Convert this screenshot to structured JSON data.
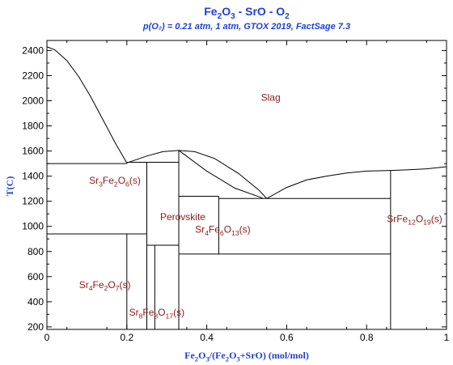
{
  "chart_data": {
    "type": "phase-diagram",
    "title": {
      "parts": [
        "Fe",
        "2",
        "O",
        "3",
        " - SrO - O",
        "2"
      ]
    },
    "subtitle": "p(O₂) = 0.21 atm, 1 atm, GTOX 2019, FactSage 7.3",
    "xlabel": {
      "parts": [
        "Fe",
        "2",
        "O",
        "3",
        "/(Fe",
        "2",
        "O",
        "3",
        "+SrO) (mol/mol)"
      ]
    },
    "ylabel": "T(C)",
    "xlim": [
      0,
      1
    ],
    "ylim": [
      180,
      2480
    ],
    "x_ticks": [
      0,
      0.2,
      0.4,
      0.6,
      0.8,
      1
    ],
    "x_tick_labels": [
      "0",
      "0.2",
      "0.4",
      "0.6",
      "0.8",
      "1"
    ],
    "y_ticks": [
      200,
      400,
      600,
      800,
      1000,
      1200,
      1400,
      1600,
      1800,
      2000,
      2200,
      2400
    ],
    "y_tick_labels": [
      "200",
      "400",
      "600",
      "800",
      "1000",
      "1200",
      "1400",
      "1600",
      "1800",
      "2000",
      "2200",
      "2400"
    ],
    "colors": {
      "title": "#1f3fd6",
      "phase_label": "#8b1a1a",
      "lines": "#000000"
    },
    "curves": [
      {
        "name": "liquidus-sro-side",
        "points": [
          [
            0,
            2430
          ],
          [
            0.02,
            2405
          ],
          [
            0.05,
            2320
          ],
          [
            0.08,
            2190
          ],
          [
            0.11,
            2030
          ],
          [
            0.14,
            1850
          ],
          [
            0.17,
            1670
          ],
          [
            0.2,
            1505
          ]
        ]
      },
      {
        "name": "liquidus-srfe2-dome",
        "points": [
          [
            0.2,
            1505
          ],
          [
            0.25,
            1560
          ],
          [
            0.29,
            1595
          ],
          [
            0.33,
            1605
          ],
          [
            0.37,
            1595
          ],
          [
            0.42,
            1540
          ],
          [
            0.48,
            1420
          ],
          [
            0.53,
            1290
          ],
          [
            0.55,
            1222
          ]
        ]
      },
      {
        "name": "liquidus-hexaferrite-side",
        "points": [
          [
            0.55,
            1222
          ],
          [
            0.6,
            1310
          ],
          [
            0.65,
            1370
          ],
          [
            0.7,
            1400
          ],
          [
            0.75,
            1425
          ],
          [
            0.8,
            1440
          ],
          [
            0.86,
            1445
          ],
          [
            0.9,
            1450
          ],
          [
            0.95,
            1458
          ],
          [
            1.0,
            1475
          ]
        ]
      },
      {
        "name": "liquidus-left-inner-segment",
        "points": [
          [
            0.33,
            1605
          ],
          [
            0.4,
            1440
          ],
          [
            0.47,
            1305
          ],
          [
            0.54,
            1225
          ]
        ]
      }
    ],
    "segments": [
      {
        "name": "eutectic-isotherm-1500",
        "points": [
          [
            0,
            1500
          ],
          [
            0.2,
            1500
          ]
        ]
      },
      {
        "name": "srfe2-peritectic-1510",
        "points": [
          [
            0.2,
            1510
          ],
          [
            0.33,
            1510
          ]
        ]
      },
      {
        "name": "isotherm-1240",
        "points": [
          [
            0.33,
            1240
          ],
          [
            0.43,
            1240
          ]
        ]
      },
      {
        "name": "eutectic-isotherm-1222",
        "points": [
          [
            0.43,
            1222
          ],
          [
            0.86,
            1222
          ]
        ]
      },
      {
        "name": "isotherm-940",
        "points": [
          [
            0,
            940
          ],
          [
            0.25,
            940
          ]
        ]
      },
      {
        "name": "isotherm-850",
        "points": [
          [
            0.25,
            850
          ],
          [
            0.33,
            850
          ]
        ]
      },
      {
        "name": "isotherm-780",
        "points": [
          [
            0.33,
            780
          ],
          [
            0.86,
            780
          ]
        ]
      },
      {
        "name": "sr3fe2o6-line",
        "points": [
          [
            0.25,
            180
          ],
          [
            0.25,
            1510
          ]
        ]
      },
      {
        "name": "sr4fe2o7-line",
        "points": [
          [
            0.2,
            180
          ],
          [
            0.2,
            940
          ]
        ]
      },
      {
        "name": "sr8fe8o17-line",
        "points": [
          [
            0.27,
            180
          ],
          [
            0.27,
            850
          ]
        ]
      },
      {
        "name": "perovskite-line",
        "points": [
          [
            0.33,
            180
          ],
          [
            0.33,
            1605
          ]
        ]
      },
      {
        "name": "sr4fe6o13-line",
        "points": [
          [
            0.43,
            780
          ],
          [
            0.43,
            1240
          ]
        ]
      },
      {
        "name": "srfe12o19-line",
        "points": [
          [
            0.86,
            180
          ],
          [
            0.86,
            1445
          ]
        ]
      }
    ],
    "phase_labels": [
      {
        "parts": [
          "Slag"
        ],
        "x": 0.56,
        "y": 2000
      },
      {
        "parts": [
          "Sr",
          "3",
          "Fe",
          "2",
          "O",
          "6",
          "(s)"
        ],
        "x": 0.17,
        "y": 1340
      },
      {
        "parts": [
          "Perovskite"
        ],
        "x": 0.34,
        "y": 1050
      },
      {
        "parts": [
          "Sr",
          "4",
          "Fe",
          "6",
          "O",
          "13",
          "(s)"
        ],
        "x": 0.44,
        "y": 950
      },
      {
        "parts": [
          "SrFe",
          "12",
          "O",
          "19",
          "(s)"
        ],
        "x": 0.92,
        "y": 1035
      },
      {
        "parts": [
          "Sr",
          "4",
          "Fe",
          "2",
          "O",
          "7",
          "(s)"
        ],
        "x": 0.145,
        "y": 510
      },
      {
        "parts": [
          "Sr",
          "8",
          "Fe",
          "8",
          "O",
          "17",
          "(s)"
        ],
        "x": 0.275,
        "y": 290
      }
    ]
  }
}
